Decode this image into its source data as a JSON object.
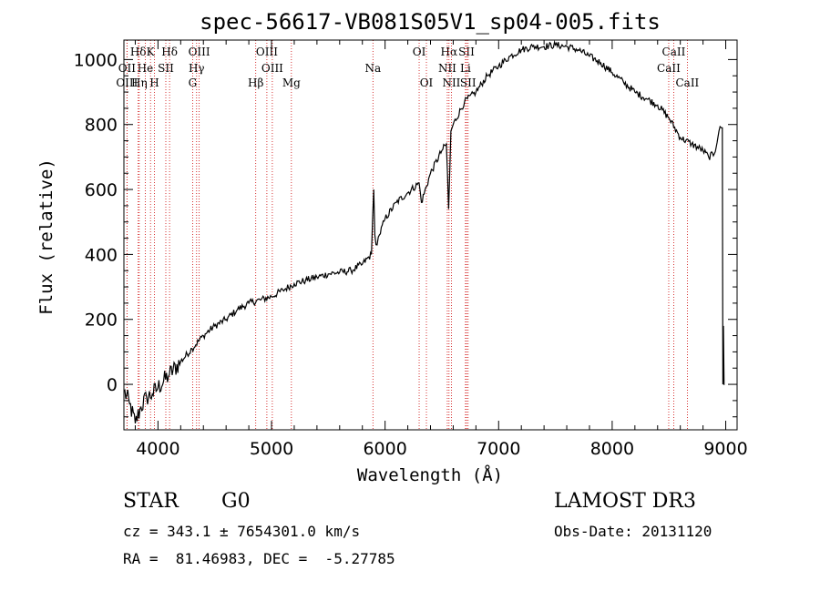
{
  "chart_data": {
    "type": "line",
    "title": "spec-56617-VB081S05V1_sp04-005.fits",
    "xlabel": "Wavelength (Å)",
    "ylabel": "Flux (relative)",
    "xlim": [
      3700,
      9100
    ],
    "ylim": [
      -140,
      1060
    ],
    "xticks": [
      4000,
      5000,
      6000,
      7000,
      8000,
      9000
    ],
    "yticks": [
      0,
      200,
      400,
      600,
      800,
      1000
    ],
    "grid": false,
    "line_color": "#000000",
    "marker_color": "#cc0000",
    "series": [
      {
        "name": "flux",
        "x": [
          3700,
          3750,
          3800,
          3850,
          3900,
          3950,
          4000,
          4100,
          4200,
          4300,
          4400,
          4500,
          4600,
          4700,
          4800,
          4900,
          5000,
          5100,
          5200,
          5300,
          5400,
          5500,
          5600,
          5700,
          5800,
          5880,
          5900,
          5910,
          5920,
          5950,
          6000,
          6100,
          6200,
          6300,
          6320,
          6400,
          6500,
          6540,
          6560,
          6580,
          6600,
          6700,
          6800,
          6900,
          7000,
          7100,
          7200,
          7300,
          7400,
          7500,
          7600,
          7700,
          7800,
          7900,
          8000,
          8100,
          8200,
          8300,
          8400,
          8500,
          8600,
          8700,
          8800,
          8850,
          8900,
          8940,
          8960,
          8970,
          8975,
          8980,
          8985,
          8990
        ],
        "y": [
          -20,
          -60,
          -120,
          -70,
          -40,
          -30,
          -10,
          30,
          70,
          110,
          150,
          180,
          200,
          230,
          250,
          260,
          270,
          290,
          310,
          320,
          330,
          340,
          345,
          350,
          370,
          400,
          600,
          460,
          430,
          460,
          510,
          560,
          590,
          620,
          560,
          650,
          720,
          740,
          540,
          780,
          800,
          870,
          900,
          950,
          980,
          1010,
          1030,
          1040,
          1040,
          1045,
          1040,
          1030,
          1010,
          990,
          960,
          930,
          900,
          880,
          860,
          820,
          760,
          740,
          720,
          700,
          710,
          780,
          790,
          790,
          0,
          180,
          0,
          0
        ]
      }
    ],
    "lines": [
      {
        "label": "Hδ",
        "x": 3826,
        "row": 1
      },
      {
        "label": "K",
        "x": 3934,
        "row": 1
      },
      {
        "label": "Hδ",
        "x": 4102,
        "row": 1
      },
      {
        "label": "OIII",
        "x": 4363,
        "row": 1
      },
      {
        "label": "OIII",
        "x": 4959,
        "row": 1
      },
      {
        "label": "OI",
        "x": 6300,
        "row": 1
      },
      {
        "label": "Hα",
        "x": 6563,
        "row": 1
      },
      {
        "label": "SII",
        "x": 6717,
        "row": 1
      },
      {
        "label": "CaII",
        "x": 8542,
        "row": 1
      },
      {
        "label": "OII",
        "x": 3727,
        "row": 2
      },
      {
        "label": "He",
        "x": 3888,
        "row": 2
      },
      {
        "label": "SII",
        "x": 4069,
        "row": 2
      },
      {
        "label": "Hγ",
        "x": 4340,
        "row": 2
      },
      {
        "label": "OIII",
        "x": 5007,
        "row": 2
      },
      {
        "label": "Na",
        "x": 5893,
        "row": 2
      },
      {
        "label": "NII",
        "x": 6548,
        "row": 2
      },
      {
        "label": "Li",
        "x": 6708,
        "row": 2
      },
      {
        "label": "CaII",
        "x": 8498,
        "row": 2
      },
      {
        "label": "OIII",
        "x": 3727,
        "row": 3
      },
      {
        "label": "Hη",
        "x": 3835,
        "row": 3
      },
      {
        "label": "H",
        "x": 3969,
        "row": 3
      },
      {
        "label": "G",
        "x": 4305,
        "row": 3
      },
      {
        "label": "Hβ",
        "x": 4861,
        "row": 3
      },
      {
        "label": "Mg",
        "x": 5175,
        "row": 3
      },
      {
        "label": "OI",
        "x": 6364,
        "row": 3
      },
      {
        "label": "NII",
        "x": 6584,
        "row": 3
      },
      {
        "label": "SII",
        "x": 6731,
        "row": 3
      },
      {
        "label": "CaII",
        "x": 8662,
        "row": 3
      }
    ]
  },
  "info": {
    "class_label": "STAR",
    "subclass": "G0",
    "survey": "LAMOST DR3",
    "redshift": "cz = 343.1 ± 7654301.0 km/s",
    "obs_date": "Obs-Date: 20131120",
    "coords": "RA =  81.46983, DEC =  -5.27785"
  }
}
